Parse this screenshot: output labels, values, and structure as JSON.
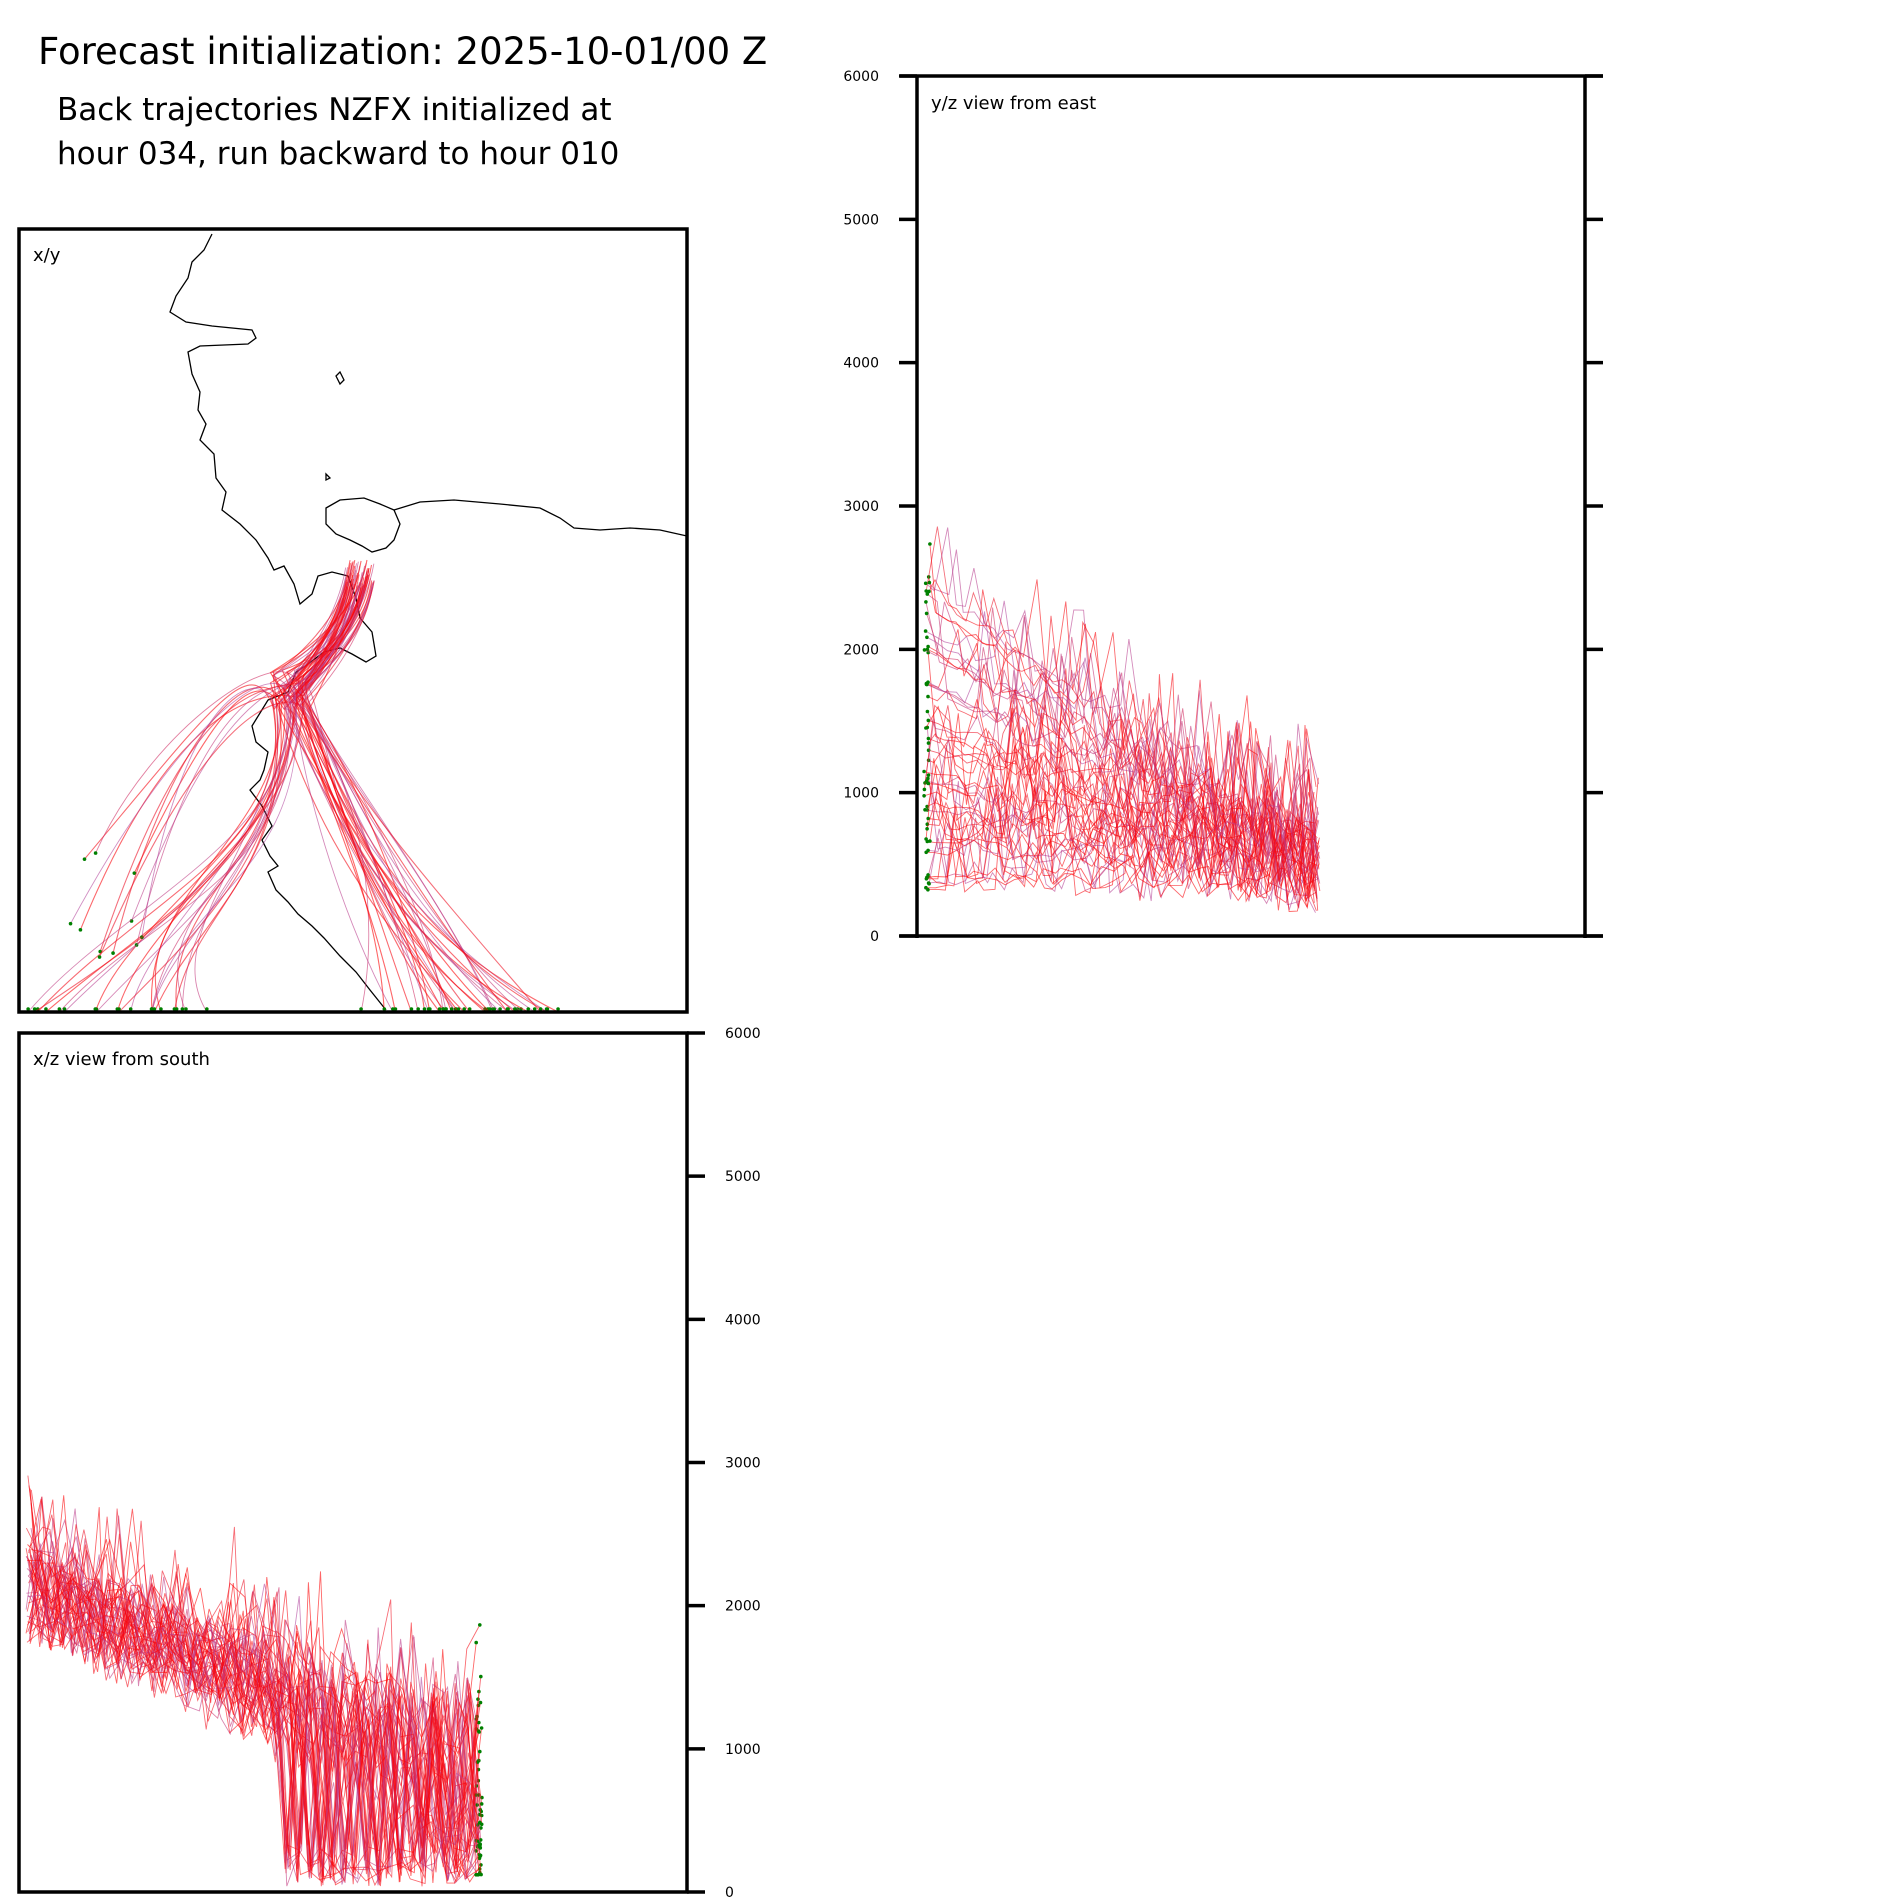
{
  "figure": {
    "title": "Forecast initialization: 2025-10-01/00 Z",
    "subtitle_line1": "Back trajectories NZFX initialized at",
    "subtitle_line2": "hour 034, run backward to hour 010"
  },
  "colors": {
    "late": "#ff0000",
    "early": "#b0449e",
    "start_marker": "#008000",
    "coastline": "#000000",
    "axes": "#000000"
  },
  "chart_data": [
    {
      "type": "line",
      "name": "x/y",
      "panel_label": "x/y",
      "description_series": "trajectory paths (plan view)",
      "xlabel": "",
      "ylabel": ""
    },
    {
      "type": "line",
      "name": "y/z view from east",
      "panel_label": "y/z view from east",
      "xlabel": "",
      "ylabel": "",
      "ylim": [
        0,
        6000
      ],
      "yticks": [
        0,
        1000,
        2000,
        3000,
        4000,
        5000,
        6000
      ]
    },
    {
      "type": "line",
      "name": "x/z view from south",
      "panel_label": "x/z view from south",
      "xlabel": "",
      "ylabel": "",
      "ylim": [
        0,
        6000
      ],
      "yticks": [
        0,
        1000,
        2000,
        3000,
        4000,
        5000,
        6000
      ]
    }
  ]
}
